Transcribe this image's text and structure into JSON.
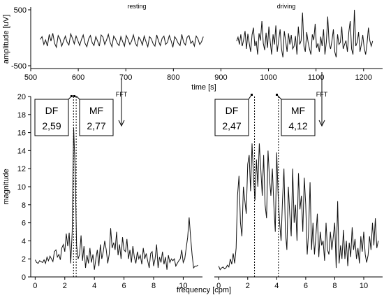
{
  "chart_data": [
    {
      "type": "line",
      "id": "time-signal",
      "xlabel": "time [s]",
      "ylabel": "amplitude [uV]",
      "xlim": [
        500,
        1240
      ],
      "ylim": [
        -520,
        520
      ],
      "xticks": [
        "500",
        "600",
        "700",
        "800",
        "900",
        "1000",
        "1100",
        "1200"
      ],
      "yticks": [
        "500",
        "-500"
      ],
      "annotations": {
        "resting": "resting",
        "driving": "driving"
      },
      "segments": [
        {
          "name": "resting",
          "x_start": 520,
          "x_end": 863,
          "values": [
            -30,
            20,
            -120,
            -40,
            -150,
            60,
            -60,
            80,
            -100,
            -170,
            40,
            -20,
            -150,
            -60,
            30,
            -80,
            -130,
            70,
            -10,
            -110,
            30,
            -50,
            -140,
            -30,
            50,
            -100,
            -160,
            -20,
            40,
            -90,
            -140,
            20,
            -60,
            -150,
            50,
            10,
            -120,
            -40,
            60,
            -80,
            -160,
            30,
            -20,
            -100,
            -140,
            20,
            -70,
            -150,
            40,
            -30,
            -120,
            -60,
            50,
            -90,
            -150,
            10,
            -40,
            -130,
            30,
            -70,
            -160,
            20,
            -20,
            -110,
            -150,
            50,
            -60,
            -140,
            -10,
            30,
            -120,
            -80,
            40,
            -50,
            -170,
            20,
            -30,
            -100,
            -140,
            60,
            -80,
            -130,
            10,
            40,
            -100,
            -60,
            -150,
            30,
            -20,
            -120,
            -70,
            20
          ]
        },
        {
          "name": "driving",
          "x_start": 933,
          "x_end": 1219,
          "values": [
            -60,
            10,
            -120,
            60,
            -150,
            -40,
            120,
            -200,
            70,
            -100,
            -250,
            50,
            180,
            -150,
            -60,
            -300,
            80,
            -50,
            300,
            -100,
            -220,
            90,
            -180,
            200,
            -80,
            -300,
            60,
            -120,
            220,
            -250,
            -40,
            150,
            -200,
            -350,
            120,
            -60,
            -250,
            80,
            -120,
            50,
            -200,
            -150,
            30,
            -300,
            200,
            -120,
            -50,
            450,
            -150,
            -250,
            100,
            -80,
            -200,
            -300,
            60,
            -40,
            250,
            -180,
            -100,
            -250,
            20,
            -150,
            150,
            -300,
            -80,
            380,
            -100,
            -200,
            -50,
            150,
            -250,
            -350,
            60,
            -120,
            -80,
            200,
            -200,
            -120,
            -50,
            -250,
            100,
            300,
            -200,
            -300,
            500,
            -150,
            -80,
            100,
            -250,
            -120,
            50,
            -180,
            -300,
            -100,
            180,
            -50,
            -150,
            -60
          ]
        }
      ],
      "fft_labels": [
        "FFT",
        "FFT"
      ]
    },
    {
      "type": "line",
      "id": "spectrum-resting",
      "xlabel": "frequency [cpm]",
      "ylabel": "magnitude",
      "xlim": [
        -0.3,
        11.3
      ],
      "ylim": [
        0,
        20
      ],
      "xticks": [
        0,
        2,
        4,
        6,
        8,
        10
      ],
      "yticks": [
        0,
        2,
        4,
        6,
        8,
        10,
        12,
        14,
        16,
        18,
        20
      ],
      "df": {
        "label": "DF",
        "value": "2,59",
        "x": 2.59
      },
      "mf": {
        "label": "MF",
        "value": "2,77",
        "x": 2.77
      },
      "x": [
        0.0,
        0.1,
        0.2,
        0.3,
        0.4,
        0.5,
        0.6,
        0.7,
        0.8,
        0.9,
        1.0,
        1.1,
        1.2,
        1.3,
        1.4,
        1.5,
        1.6,
        1.7,
        1.8,
        1.9,
        2.0,
        2.1,
        2.2,
        2.3,
        2.4,
        2.5,
        2.6,
        2.7,
        2.8,
        2.9,
        3.0,
        3.1,
        3.2,
        3.3,
        3.4,
        3.5,
        3.6,
        3.7,
        3.8,
        3.9,
        4.0,
        4.1,
        4.2,
        4.3,
        4.4,
        4.5,
        4.6,
        4.7,
        4.8,
        4.9,
        5.0,
        5.1,
        5.2,
        5.3,
        5.4,
        5.5,
        5.6,
        5.7,
        5.8,
        5.9,
        6.0,
        6.1,
        6.2,
        6.3,
        6.4,
        6.5,
        6.6,
        6.7,
        6.8,
        6.9,
        7.0,
        7.1,
        7.2,
        7.3,
        7.4,
        7.5,
        7.6,
        7.7,
        7.8,
        7.9,
        8.0,
        8.1,
        8.2,
        8.3,
        8.4,
        8.5,
        8.6,
        8.7,
        8.8,
        8.9,
        9.0,
        9.1,
        9.2,
        9.3,
        9.4,
        9.5,
        9.6,
        9.7,
        9.8,
        9.9,
        10.0,
        10.1,
        10.2,
        10.3,
        10.4,
        10.5,
        10.6,
        10.7,
        10.8,
        10.9,
        11.0
      ],
      "values": [
        1.9,
        1.6,
        1.5,
        1.8,
        1.7,
        1.6,
        1.9,
        1.5,
        2.2,
        1.8,
        2.3,
        2.0,
        1.7,
        2.8,
        3.0,
        2.2,
        2.5,
        1.9,
        3.2,
        3.6,
        2.8,
        4.8,
        3.4,
        4.9,
        1.5,
        5.0,
        16.5,
        12.0,
        3.5,
        2.0,
        2.5,
        4.6,
        1.8,
        3.4,
        1.0,
        2.4,
        1.5,
        3.2,
        1.6,
        2.5,
        0.8,
        2.0,
        3.0,
        1.2,
        3.6,
        2.0,
        2.8,
        4.0,
        3.0,
        1.5,
        2.5,
        5.4,
        3.2,
        3.8,
        3.0,
        5.0,
        2.4,
        3.6,
        2.0,
        4.4,
        3.0,
        2.8,
        4.2,
        2.0,
        3.0,
        1.6,
        3.4,
        2.2,
        1.5,
        2.8,
        2.0,
        2.4,
        1.4,
        3.2,
        2.0,
        2.6,
        1.8,
        1.0,
        2.6,
        2.8,
        1.2,
        2.0,
        3.6,
        1.0,
        2.2,
        1.6,
        2.8,
        1.4,
        2.2,
        0.8,
        2.4,
        1.6,
        2.0,
        1.8,
        2.0,
        1.2,
        1.5,
        1.8,
        2.0,
        3.0,
        1.6,
        2.0,
        3.2,
        4.4,
        6.6,
        4.4,
        2.4,
        1.0,
        1.2,
        1.2,
        1.3
      ]
    },
    {
      "type": "line",
      "id": "spectrum-driving",
      "xlabel": "",
      "ylabel": "",
      "xlim": [
        -0.3,
        11.3
      ],
      "ylim": [
        0,
        20
      ],
      "xticks": [
        0,
        2,
        4,
        6,
        8,
        10
      ],
      "df": {
        "label": "DF",
        "value": "2,47",
        "x": 2.47
      },
      "mf": {
        "label": "MF",
        "value": "4,12",
        "x": 4.12
      },
      "x": [
        0.0,
        0.1,
        0.2,
        0.3,
        0.4,
        0.5,
        0.6,
        0.7,
        0.8,
        0.9,
        1.0,
        1.1,
        1.2,
        1.3,
        1.4,
        1.5,
        1.6,
        1.7,
        1.8,
        1.9,
        2.0,
        2.1,
        2.2,
        2.3,
        2.4,
        2.5,
        2.6,
        2.7,
        2.8,
        2.9,
        3.0,
        3.1,
        3.2,
        3.3,
        3.4,
        3.5,
        3.6,
        3.7,
        3.8,
        3.9,
        4.0,
        4.1,
        4.2,
        4.3,
        4.4,
        4.5,
        4.6,
        4.7,
        4.8,
        4.9,
        5.0,
        5.1,
        5.2,
        5.3,
        5.4,
        5.5,
        5.6,
        5.7,
        5.8,
        5.9,
        6.0,
        6.1,
        6.2,
        6.3,
        6.4,
        6.5,
        6.6,
        6.7,
        6.8,
        6.9,
        7.0,
        7.1,
        7.2,
        7.3,
        7.4,
        7.5,
        7.6,
        7.7,
        7.8,
        7.9,
        8.0,
        8.1,
        8.2,
        8.3,
        8.4,
        8.5,
        8.6,
        8.7,
        8.8,
        8.9,
        9.0,
        9.1,
        9.2,
        9.3,
        9.4,
        9.5,
        9.6,
        9.7,
        9.8,
        9.9,
        10.0,
        10.1,
        10.2,
        10.3,
        10.4,
        10.5,
        10.6,
        10.7,
        10.8,
        10.9,
        11.0
      ],
      "values": [
        1.2,
        0.8,
        1.0,
        1.1,
        0.9,
        1.0,
        1.3,
        1.1,
        2.0,
        1.4,
        2.6,
        1.5,
        3.2,
        9.0,
        11.2,
        6.0,
        4.5,
        10.0,
        8.5,
        7.0,
        12.5,
        13.5,
        9.5,
        14.8,
        11.0,
        8.5,
        13.0,
        10.0,
        14.8,
        12.0,
        9.0,
        13.5,
        8.0,
        6.5,
        14.0,
        11.0,
        9.0,
        12.0,
        8.0,
        5.0,
        13.8,
        9.0,
        6.0,
        4.0,
        8.5,
        12.0,
        5.0,
        3.0,
        10.0,
        7.0,
        4.5,
        12.0,
        6.0,
        8.0,
        4.0,
        11.5,
        7.5,
        9.0,
        5.0,
        11.0,
        8.0,
        2.5,
        5.0,
        10.5,
        3.0,
        6.0,
        2.5,
        4.5,
        7.0,
        2.2,
        5.0,
        3.5,
        4.0,
        1.8,
        6.0,
        3.0,
        2.5,
        5.0,
        3.0,
        4.5,
        6.0,
        1.0,
        8.4,
        1.5,
        3.5,
        2.0,
        5.2,
        2.0,
        4.0,
        1.2,
        3.8,
        2.2,
        5.5,
        3.0,
        4.2,
        2.0,
        3.2,
        1.5,
        4.5,
        2.8,
        5.0,
        2.5,
        1.6,
        2.4,
        4.5,
        3.0,
        6.0,
        3.5,
        6.5,
        3.2,
        4.0
      ]
    }
  ]
}
